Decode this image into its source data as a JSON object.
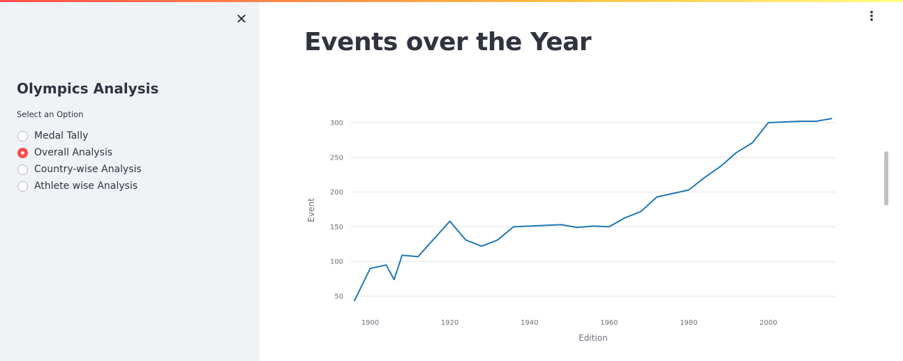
{
  "sidebar": {
    "close_icon": "close-icon",
    "title": "Olympics Analysis",
    "radio_label": "Select an Option",
    "options": [
      {
        "label": "Medal Tally",
        "selected": false
      },
      {
        "label": "Overall Analysis",
        "selected": true
      },
      {
        "label": "Country-wise Analysis",
        "selected": false
      },
      {
        "label": "Athlete wise Analysis",
        "selected": false
      }
    ],
    "accent_color": "#ff4b4b"
  },
  "main": {
    "menu_icon": "kebab-menu-icon",
    "title": "Events over the Year"
  },
  "chart_data": {
    "type": "line",
    "title": "",
    "xlabel": "Edition",
    "ylabel": "Event",
    "xlim": [
      1895,
      2017
    ],
    "ylim": [
      40,
      308
    ],
    "grid": true,
    "x_ticks": [
      "1900",
      "1920",
      "1940",
      "1960",
      "1980",
      "2000"
    ],
    "y_ticks": [
      "50",
      "100",
      "150",
      "200",
      "250",
      "300"
    ],
    "line_color": "#1f77b4",
    "series": [
      {
        "x": [
          1896,
          1900,
          1904,
          1906,
          1908,
          1912,
          1920,
          1924,
          1928,
          1932,
          1936,
          1948,
          1952,
          1956,
          1960,
          1964,
          1968,
          1972,
          1976,
          1980,
          1984,
          1988,
          1992,
          1996,
          2000,
          2004,
          2008,
          2012,
          2016
        ],
        "y": [
          43,
          90,
          95,
          74,
          109,
          107,
          158,
          131,
          122,
          131,
          150,
          153,
          149,
          151,
          150,
          163,
          172,
          193,
          198,
          203,
          221,
          237,
          257,
          271,
          300,
          301,
          302,
          302,
          306
        ]
      }
    ]
  }
}
